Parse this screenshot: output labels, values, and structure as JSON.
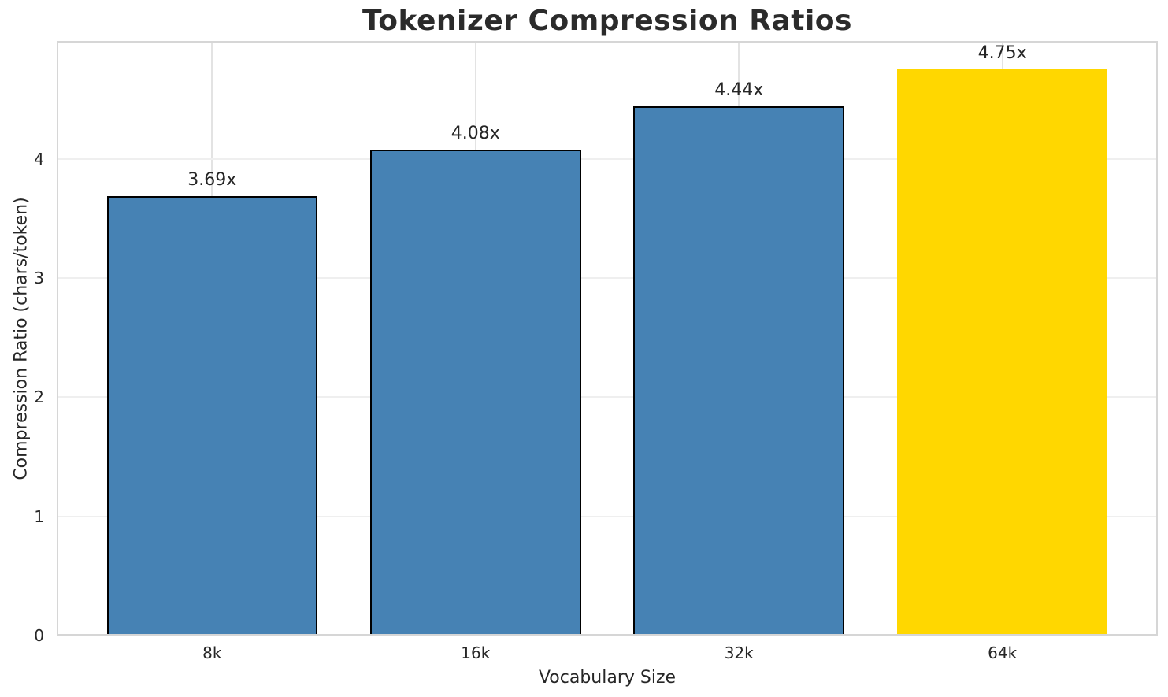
{
  "figure": {
    "background_color": "#ffffff",
    "text_color": "#262626",
    "title_color": "#2b2b2b",
    "grid_color_horizontal": "#efefef",
    "grid_color_vertical": "#e3e3e3",
    "spine_color": "#d6d6d6"
  },
  "chart_data": {
    "type": "bar",
    "title": "Tokenizer Compression Ratios",
    "xlabel": "Vocabulary Size",
    "ylabel": "Compression Ratio (chars/token)",
    "categories": [
      "8k",
      "16k",
      "32k",
      "64k"
    ],
    "values": [
      3.69,
      4.08,
      4.44,
      4.75
    ],
    "bar_labels": [
      "3.69x",
      "4.08x",
      "4.44x",
      "4.75x"
    ],
    "bar_colors": [
      "#4682B4",
      "#4682B4",
      "#4682B4",
      "#FFD700"
    ],
    "bar_edge_colors": [
      "#000000",
      "#000000",
      "#000000",
      "none"
    ],
    "bar_edge_width": 2,
    "bar_width_data_units": 0.8,
    "xlim": [
      -0.59,
      3.59
    ],
    "ylim": [
      0,
      4.99
    ],
    "yticks": [
      0,
      1,
      2,
      3,
      4
    ],
    "grid": "both",
    "legend_position": "none"
  }
}
